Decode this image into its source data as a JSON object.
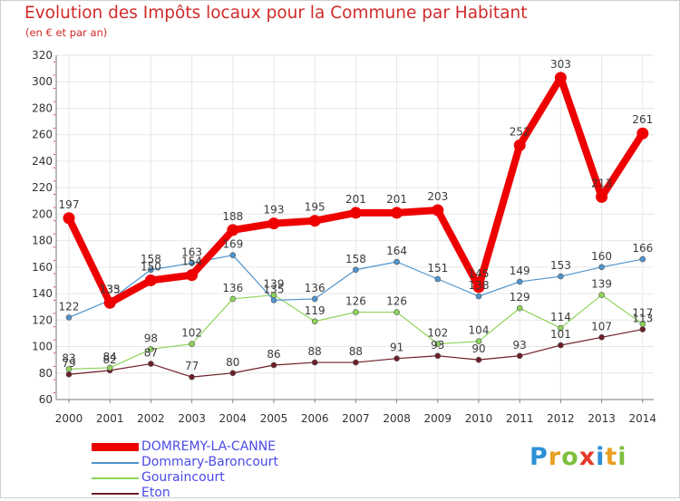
{
  "chart_data": {
    "type": "line",
    "title": "Evolution des Impôts locaux pour la Commune par Habitant",
    "subtitle": "(en € et par an)",
    "xlabel": "",
    "ylabel": "",
    "x": [
      "2000",
      "2001",
      "2002",
      "2003",
      "2004",
      "2005",
      "2006",
      "2007",
      "2008",
      "2009",
      "2010",
      "2011",
      "2012",
      "2013",
      "2014"
    ],
    "ylim": [
      60,
      320
    ],
    "yticks": [
      60,
      80,
      100,
      120,
      140,
      160,
      180,
      200,
      220,
      240,
      260,
      280,
      300,
      320
    ],
    "grid": true,
    "series": [
      {
        "name": "Eton",
        "color": "#6e1e28",
        "values": [
          79,
          82,
          87,
          77,
          80,
          86,
          88,
          88,
          91,
          93,
          90,
          93,
          101,
          107,
          113
        ],
        "labels": [
          "79",
          "82",
          "87",
          "77",
          "80",
          "86",
          "88",
          "88",
          "91",
          "93",
          "90",
          "93",
          "101",
          "107",
          "113"
        ]
      },
      {
        "name": "Gouraincourt",
        "color": "#8fd45a",
        "values": [
          83,
          84,
          98,
          102,
          136,
          139,
          119,
          126,
          126,
          102,
          104,
          129,
          114,
          139,
          117
        ],
        "labels": [
          "83",
          "84",
          "98",
          "102",
          "136",
          "139",
          "119",
          "126",
          "126",
          "102",
          "104",
          "129",
          "114",
          "139",
          "117"
        ]
      },
      {
        "name": "Dommary-Baroncourt",
        "color": "#4f94cd",
        "values": [
          122,
          135,
          158,
          163,
          169,
          135,
          136,
          158,
          164,
          151,
          138,
          149,
          153,
          160,
          166
        ],
        "labels": [
          "122",
          "135",
          "158",
          "163",
          "169",
          "135",
          "136",
          "158",
          "164",
          "151",
          "138",
          "149",
          "153",
          "160",
          "166"
        ]
      },
      {
        "name": "DOMREMY-LA-CANNE",
        "color": "#ee0000",
        "values": [
          197,
          133,
          150,
          154,
          188,
          193,
          195,
          201,
          201,
          203,
          145,
          252,
          303,
          213,
          261
        ],
        "labels": [
          "197",
          "133",
          "150",
          "154",
          "188",
          "193",
          "195",
          "201",
          "201",
          "203",
          "145",
          "252",
          "303",
          "213",
          "261"
        ]
      }
    ],
    "legend": [
      {
        "name": "DOMREMY-LA-CANNE",
        "color": "#ee0000"
      },
      {
        "name": "Dommary-Baroncourt",
        "color": "#4f94cd"
      },
      {
        "name": "Gouraincourt",
        "color": "#8fd45a"
      },
      {
        "name": "Eton",
        "color": "#6e1e28"
      }
    ],
    "legend_position": "bottom-left"
  },
  "logo": {
    "letters": [
      "P",
      "r",
      "o",
      "x",
      "i",
      "t",
      "i"
    ],
    "colors": [
      "#2e8fd6",
      "#e8a020",
      "#7fbf3f",
      "#e53a2a",
      "#2e8fd6",
      "#e8a020",
      "#7fbf3f"
    ]
  }
}
